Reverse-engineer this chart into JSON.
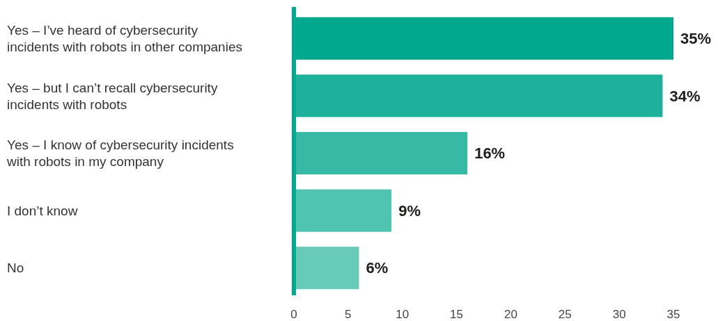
{
  "chart_data": {
    "type": "bar",
    "orientation": "horizontal",
    "categories": [
      "Yes – I’ve heard of cybersecurity incidents with robots in other companies",
      "Yes – but I can’t recall cybersecurity incidents with robots",
      "Yes – I know of cybersecurity incidents with robots in my company",
      "I don’t know",
      "No"
    ],
    "values": [
      35,
      34,
      16,
      9,
      6
    ],
    "colors": [
      "#00a88e",
      "#1db19c",
      "#37baa5",
      "#4fc4b1",
      "#68cbba"
    ],
    "value_labels": [
      "35%",
      "34%",
      "16%",
      "9%",
      "6%"
    ],
    "xlim": [
      0,
      35
    ],
    "xticks": [
      0,
      5,
      10,
      15,
      20,
      25,
      30,
      35
    ],
    "grid": false
  }
}
